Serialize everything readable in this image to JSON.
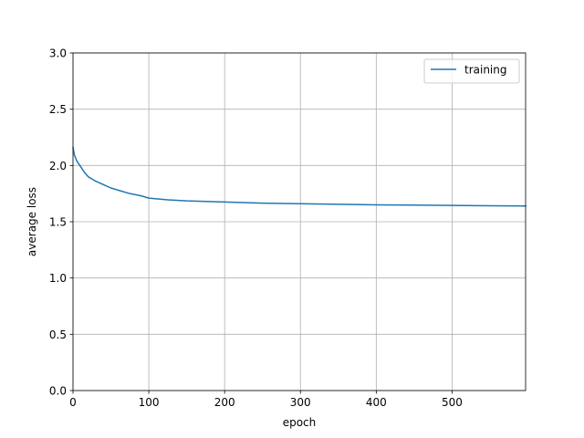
{
  "chart_data": {
    "type": "line",
    "title": "",
    "xlabel": "epoch",
    "ylabel": "average loss",
    "xlim": [
      0,
      597
    ],
    "ylim": [
      0.0,
      3.0
    ],
    "xticks": [
      0,
      100,
      200,
      300,
      400,
      500
    ],
    "xtick_labels": [
      "0",
      "100",
      "200",
      "300",
      "400",
      "500"
    ],
    "yticks": [
      0.0,
      0.5,
      1.0,
      1.5,
      2.0,
      2.5,
      3.0
    ],
    "ytick_labels": [
      "0.0",
      "0.5",
      "1.0",
      "1.5",
      "2.0",
      "2.5",
      "3.0"
    ],
    "grid": true,
    "legend_position": "top-right",
    "series": [
      {
        "name": "training",
        "color": "#1f77b4",
        "x": [
          0,
          2,
          5,
          10,
          15,
          20,
          30,
          40,
          50,
          60,
          75,
          90,
          100,
          125,
          150,
          175,
          200,
          250,
          300,
          350,
          400,
          450,
          500,
          550,
          597
        ],
        "y": [
          2.16,
          2.09,
          2.04,
          1.99,
          1.94,
          1.9,
          1.86,
          1.83,
          1.8,
          1.78,
          1.75,
          1.73,
          1.71,
          1.695,
          1.685,
          1.68,
          1.675,
          1.665,
          1.66,
          1.655,
          1.65,
          1.648,
          1.645,
          1.642,
          1.64
        ]
      }
    ]
  }
}
